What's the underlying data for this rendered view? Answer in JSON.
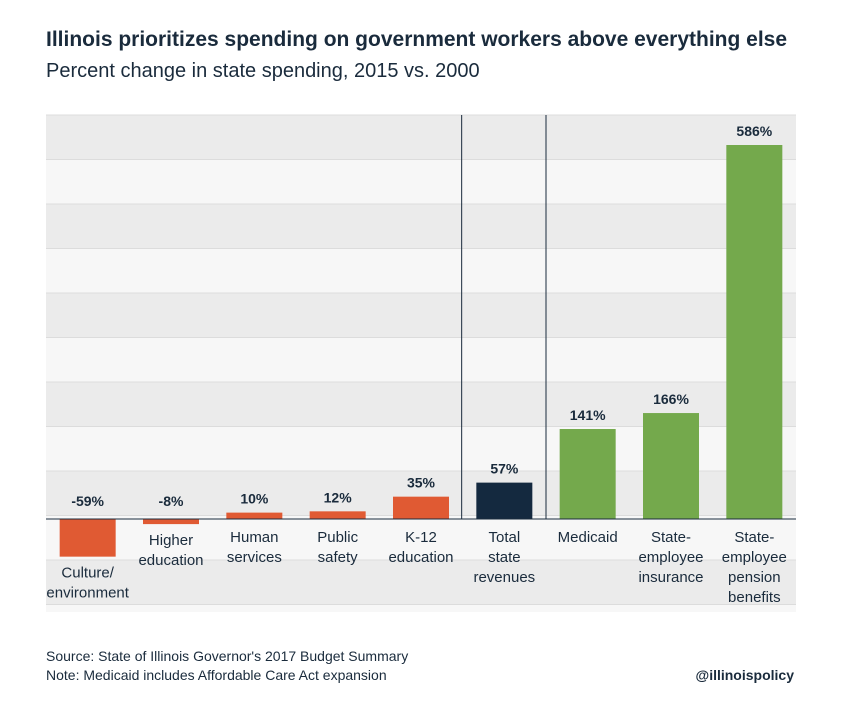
{
  "title": "Illinois prioritizes spending on government workers above everything else",
  "subtitle": "Percent change in state spending, 2015 vs. 2000",
  "source": "Source: State of Illinois Governor's 2017 Budget Summary",
  "note": "Note: Medicaid includes Affordable Care Act expansion",
  "handle": "@illinoispolicy",
  "colors": {
    "orange": "#e05a33",
    "navy": "#14293f",
    "green": "#74a94c",
    "band_light": "#f7f7f7",
    "band_dark": "#ebebeb"
  },
  "chart_data": {
    "type": "bar",
    "categories": [
      [
        "Culture/",
        "environment"
      ],
      [
        "Higher",
        "education"
      ],
      [
        "Human",
        "services"
      ],
      [
        "Public",
        "safety"
      ],
      [
        "K-12",
        "education"
      ],
      [
        "Total",
        "state",
        "revenues"
      ],
      [
        "Medicaid"
      ],
      [
        "State-",
        "employee",
        "insurance"
      ],
      [
        "State-",
        "employee",
        "pension",
        "benefits"
      ]
    ],
    "values": [
      -59,
      -8,
      10,
      12,
      35,
      57,
      141,
      166,
      586
    ],
    "value_labels": [
      "-59%",
      "-8%",
      "10%",
      "12%",
      "35%",
      "57%",
      "141%",
      "166%",
      "586%"
    ],
    "bar_colors": [
      "orange",
      "orange",
      "orange",
      "orange",
      "orange",
      "navy",
      "green",
      "green",
      "green"
    ],
    "ylim": [
      -140,
      660
    ],
    "grid": true,
    "xlabel": "",
    "ylabel": ""
  }
}
